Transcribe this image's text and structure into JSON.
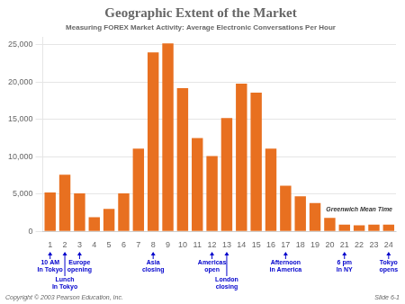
{
  "chart_data": {
    "type": "bar",
    "title": "Geographic Extent of the Market",
    "subtitle": "Measuring FOREX Market Activity: Average Electronic Conversations Per Hour",
    "xlabel": "Greenwich Mean Time",
    "categories": [
      "1",
      "2",
      "3",
      "4",
      "5",
      "6",
      "7",
      "8",
      "9",
      "10",
      "11",
      "12",
      "13",
      "14",
      "15",
      "16",
      "17",
      "18",
      "19",
      "20",
      "21",
      "22",
      "23",
      "24"
    ],
    "values": [
      5200,
      7600,
      5100,
      1900,
      3000,
      5100,
      11100,
      24000,
      25200,
      19200,
      12500,
      10100,
      15200,
      19800,
      18600,
      11100,
      6100,
      4700,
      3800,
      1800,
      900,
      800,
      900,
      900
    ],
    "color": "#E87020",
    "ylim": [
      0,
      26000
    ],
    "yticks": [
      0,
      {
        "value": 5000,
        "label": "5,000"
      },
      {
        "value": 10000,
        "label": "10,000"
      },
      {
        "value": 15000,
        "label": "15,000"
      },
      {
        "value": 20000,
        "label": "20,000"
      },
      {
        "value": 25000,
        "label": "25,000"
      }
    ],
    "grid": true,
    "annotations": [
      {
        "category": "1",
        "text": "10 AM\nIn Tokyo"
      },
      {
        "category": "2",
        "text": "Lunch\nIn Tokyo"
      },
      {
        "category": "3",
        "text": "Europe\nopening"
      },
      {
        "category": "8",
        "text": "Asia\nclosing"
      },
      {
        "category": "12",
        "text": "Americas\nopen"
      },
      {
        "category": "13",
        "text": "London\nclosing"
      },
      {
        "category": "17",
        "text": "Afternoon\nin America"
      },
      {
        "category": "21",
        "text": "6 pm\nIn NY"
      },
      {
        "category": "24",
        "text": "Tokyo\nopens"
      },
      {
        "text": "Copyright © 2003 Pearson Education, Inc."
      },
      {
        "text": "Slide 6-1"
      }
    ]
  }
}
